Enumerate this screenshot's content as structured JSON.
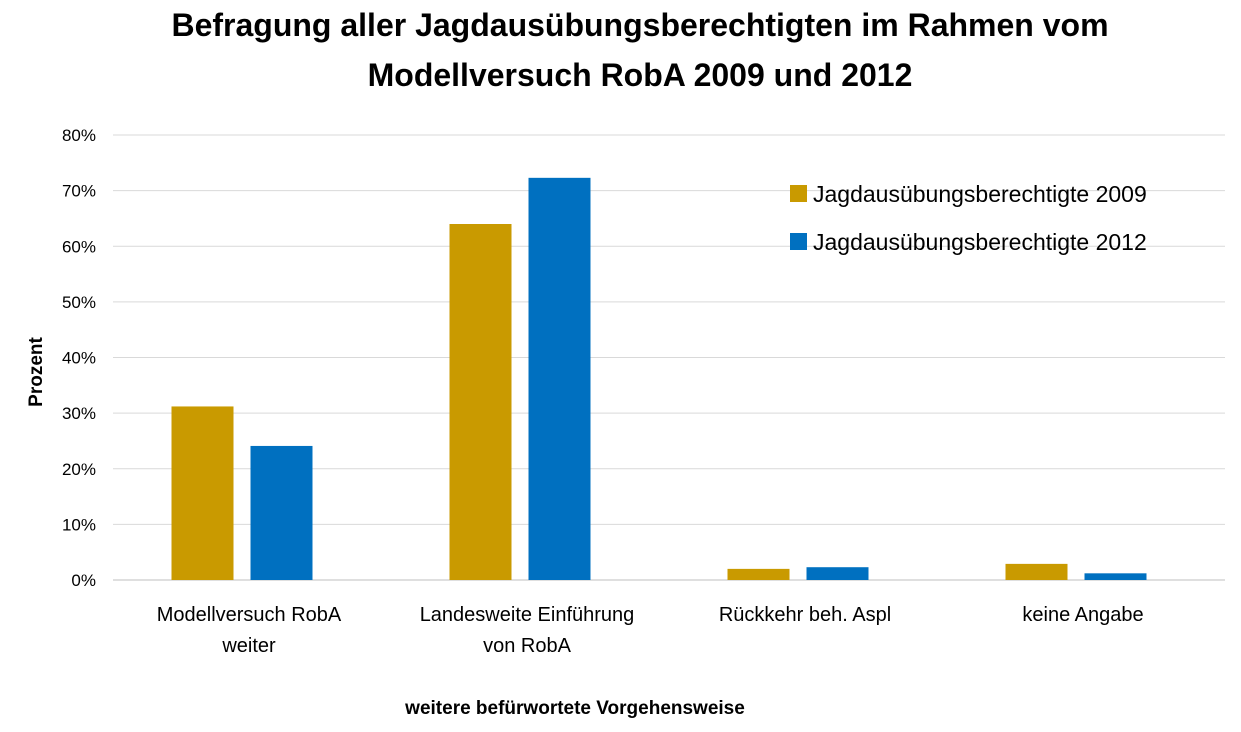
{
  "chart_data": {
    "type": "bar",
    "title": "Befragung aller Jagdausübungsberechtigten im Rahmen vom Modellversuch RobA 2009 und 2012",
    "xlabel": "weitere befürwortete Vorgehensweise",
    "ylabel": "Prozent",
    "ylim": [
      0,
      80
    ],
    "yticks": [
      "0%",
      "10%",
      "20%",
      "30%",
      "40%",
      "50%",
      "60%",
      "70%",
      "80%"
    ],
    "categories": [
      [
        "Modellversuch RobA",
        "weiter"
      ],
      [
        "Landesweite Einführung",
        "von RobA"
      ],
      [
        "Rückkehr beh. Aspl"
      ],
      [
        "keine Angabe"
      ]
    ],
    "series": [
      {
        "name": "Jagdausübungsberechtigte 2009",
        "color": "#C99A00",
        "values": [
          31.2,
          64.0,
          2.0,
          2.9
        ]
      },
      {
        "name": "Jagdausübungsberechtigte 2012",
        "color": "#0070C0",
        "values": [
          24.1,
          72.3,
          2.3,
          1.2
        ]
      }
    ],
    "grid": true,
    "legend_position": "top-right"
  }
}
